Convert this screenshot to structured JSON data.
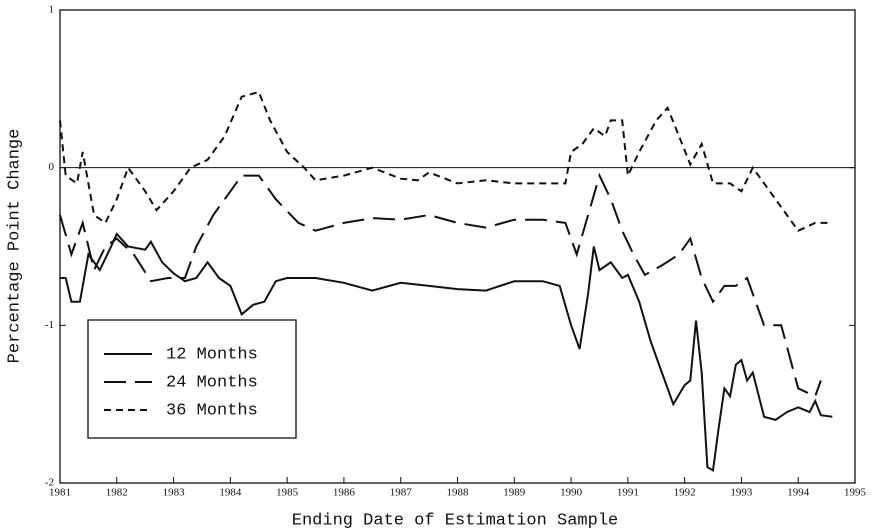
{
  "chart_data": {
    "type": "line",
    "xlabel": "Ending Date of Estimation Sample",
    "ylabel": "Percentage Point Change",
    "xlim": [
      1981,
      1995
    ],
    "ylim": [
      -2,
      1
    ],
    "xticks": [
      1981,
      1982,
      1983,
      1984,
      1985,
      1986,
      1987,
      1988,
      1989,
      1990,
      1991,
      1992,
      1993,
      1994,
      1995
    ],
    "yticks": [
      -2,
      -1,
      0,
      1
    ],
    "hline": 0,
    "legend": "lower left",
    "series": [
      {
        "name": "12 Months",
        "color": "#111111",
        "linestyle": "solid",
        "x": [
          1981.0,
          1981.1,
          1981.2,
          1981.35,
          1981.5,
          1981.7,
          1981.9,
          1982.0,
          1982.2,
          1982.5,
          1982.6,
          1982.8,
          1983.0,
          1983.2,
          1983.4,
          1983.6,
          1983.8,
          1984.0,
          1984.2,
          1984.4,
          1984.6,
          1984.8,
          1985.0,
          1985.5,
          1986.0,
          1986.5,
          1987.0,
          1987.5,
          1988.0,
          1988.5,
          1989.0,
          1989.5,
          1989.8,
          1990.0,
          1990.15,
          1990.3,
          1990.4,
          1990.5,
          1990.7,
          1990.9,
          1991.0,
          1991.2,
          1991.4,
          1991.6,
          1991.8,
          1992.0,
          1992.1,
          1992.2,
          1992.3,
          1992.4,
          1992.5,
          1992.6,
          1992.7,
          1992.8,
          1992.9,
          1993.0,
          1993.1,
          1993.2,
          1993.4,
          1993.6,
          1993.8,
          1994.0,
          1994.2,
          1994.3,
          1994.4,
          1994.6
        ],
        "values": [
          -0.7,
          -0.7,
          -0.85,
          -0.85,
          -0.55,
          -0.65,
          -0.5,
          -0.42,
          -0.5,
          -0.52,
          -0.47,
          -0.6,
          -0.67,
          -0.72,
          -0.7,
          -0.6,
          -0.7,
          -0.75,
          -0.93,
          -0.87,
          -0.85,
          -0.72,
          -0.7,
          -0.7,
          -0.73,
          -0.78,
          -0.73,
          -0.75,
          -0.77,
          -0.78,
          -0.72,
          -0.72,
          -0.75,
          -1.0,
          -1.15,
          -0.8,
          -0.5,
          -0.65,
          -0.6,
          -0.7,
          -0.68,
          -0.85,
          -1.1,
          -1.3,
          -1.5,
          -1.38,
          -1.35,
          -0.97,
          -1.3,
          -1.9,
          -1.92,
          -1.65,
          -1.4,
          -1.45,
          -1.25,
          -1.22,
          -1.35,
          -1.3,
          -1.58,
          -1.6,
          -1.55,
          -1.52,
          -1.55,
          -1.48,
          -1.57,
          -1.58
        ]
      },
      {
        "name": "24 Months",
        "color": "#111111",
        "linestyle": "long-dash",
        "x": [
          1981.0,
          1981.2,
          1981.4,
          1981.6,
          1981.8,
          1982.0,
          1982.3,
          1982.6,
          1982.9,
          1983.2,
          1983.4,
          1983.7,
          1984.0,
          1984.2,
          1984.5,
          1984.8,
          1985.2,
          1985.5,
          1986.0,
          1986.5,
          1987.0,
          1987.5,
          1988.0,
          1988.5,
          1989.0,
          1989.5,
          1989.9,
          1990.1,
          1990.3,
          1990.5,
          1990.7,
          1990.9,
          1991.1,
          1991.3,
          1991.6,
          1991.9,
          1992.1,
          1992.3,
          1992.5,
          1992.7,
          1992.9,
          1993.1,
          1993.4,
          1993.7,
          1994.0,
          1994.3,
          1994.4
        ],
        "values": [
          -0.3,
          -0.55,
          -0.35,
          -0.65,
          -0.5,
          -0.45,
          -0.55,
          -0.72,
          -0.7,
          -0.7,
          -0.5,
          -0.3,
          -0.15,
          -0.05,
          -0.05,
          -0.2,
          -0.35,
          -0.4,
          -0.35,
          -0.32,
          -0.33,
          -0.3,
          -0.35,
          -0.38,
          -0.33,
          -0.33,
          -0.35,
          -0.55,
          -0.3,
          -0.05,
          -0.2,
          -0.4,
          -0.55,
          -0.68,
          -0.62,
          -0.55,
          -0.45,
          -0.7,
          -0.85,
          -0.75,
          -0.75,
          -0.7,
          -1.0,
          -1.0,
          -1.4,
          -1.45,
          -1.35
        ]
      },
      {
        "name": "36 Months",
        "color": "#111111",
        "linestyle": "short-dash",
        "x": [
          1981.0,
          1981.1,
          1981.3,
          1981.4,
          1981.6,
          1981.8,
          1982.0,
          1982.2,
          1982.5,
          1982.7,
          1983.0,
          1983.3,
          1983.6,
          1983.9,
          1984.2,
          1984.5,
          1984.7,
          1985.0,
          1985.3,
          1985.5,
          1986.0,
          1986.5,
          1987.0,
          1987.3,
          1987.5,
          1988.0,
          1988.5,
          1989.0,
          1989.5,
          1989.9,
          1990.0,
          1990.2,
          1990.4,
          1990.6,
          1990.7,
          1990.9,
          1991.0,
          1991.2,
          1991.5,
          1991.7,
          1991.9,
          1992.1,
          1992.3,
          1992.5,
          1992.8,
          1993.0,
          1993.2,
          1993.5,
          1993.8,
          1994.0,
          1994.3,
          1994.6
        ],
        "values": [
          0.3,
          -0.05,
          -0.1,
          0.1,
          -0.3,
          -0.35,
          -0.2,
          0.0,
          -0.15,
          -0.27,
          -0.15,
          0.0,
          0.05,
          0.2,
          0.45,
          0.48,
          0.3,
          0.1,
          0.0,
          -0.08,
          -0.05,
          0.0,
          -0.07,
          -0.08,
          -0.03,
          -0.1,
          -0.08,
          -0.1,
          -0.1,
          -0.1,
          0.1,
          0.15,
          0.25,
          0.2,
          0.3,
          0.3,
          -0.05,
          0.1,
          0.3,
          0.38,
          0.2,
          0.02,
          0.15,
          -0.1,
          -0.1,
          -0.15,
          0.0,
          -0.15,
          -0.3,
          -0.4,
          -0.35,
          -0.35
        ]
      }
    ]
  }
}
